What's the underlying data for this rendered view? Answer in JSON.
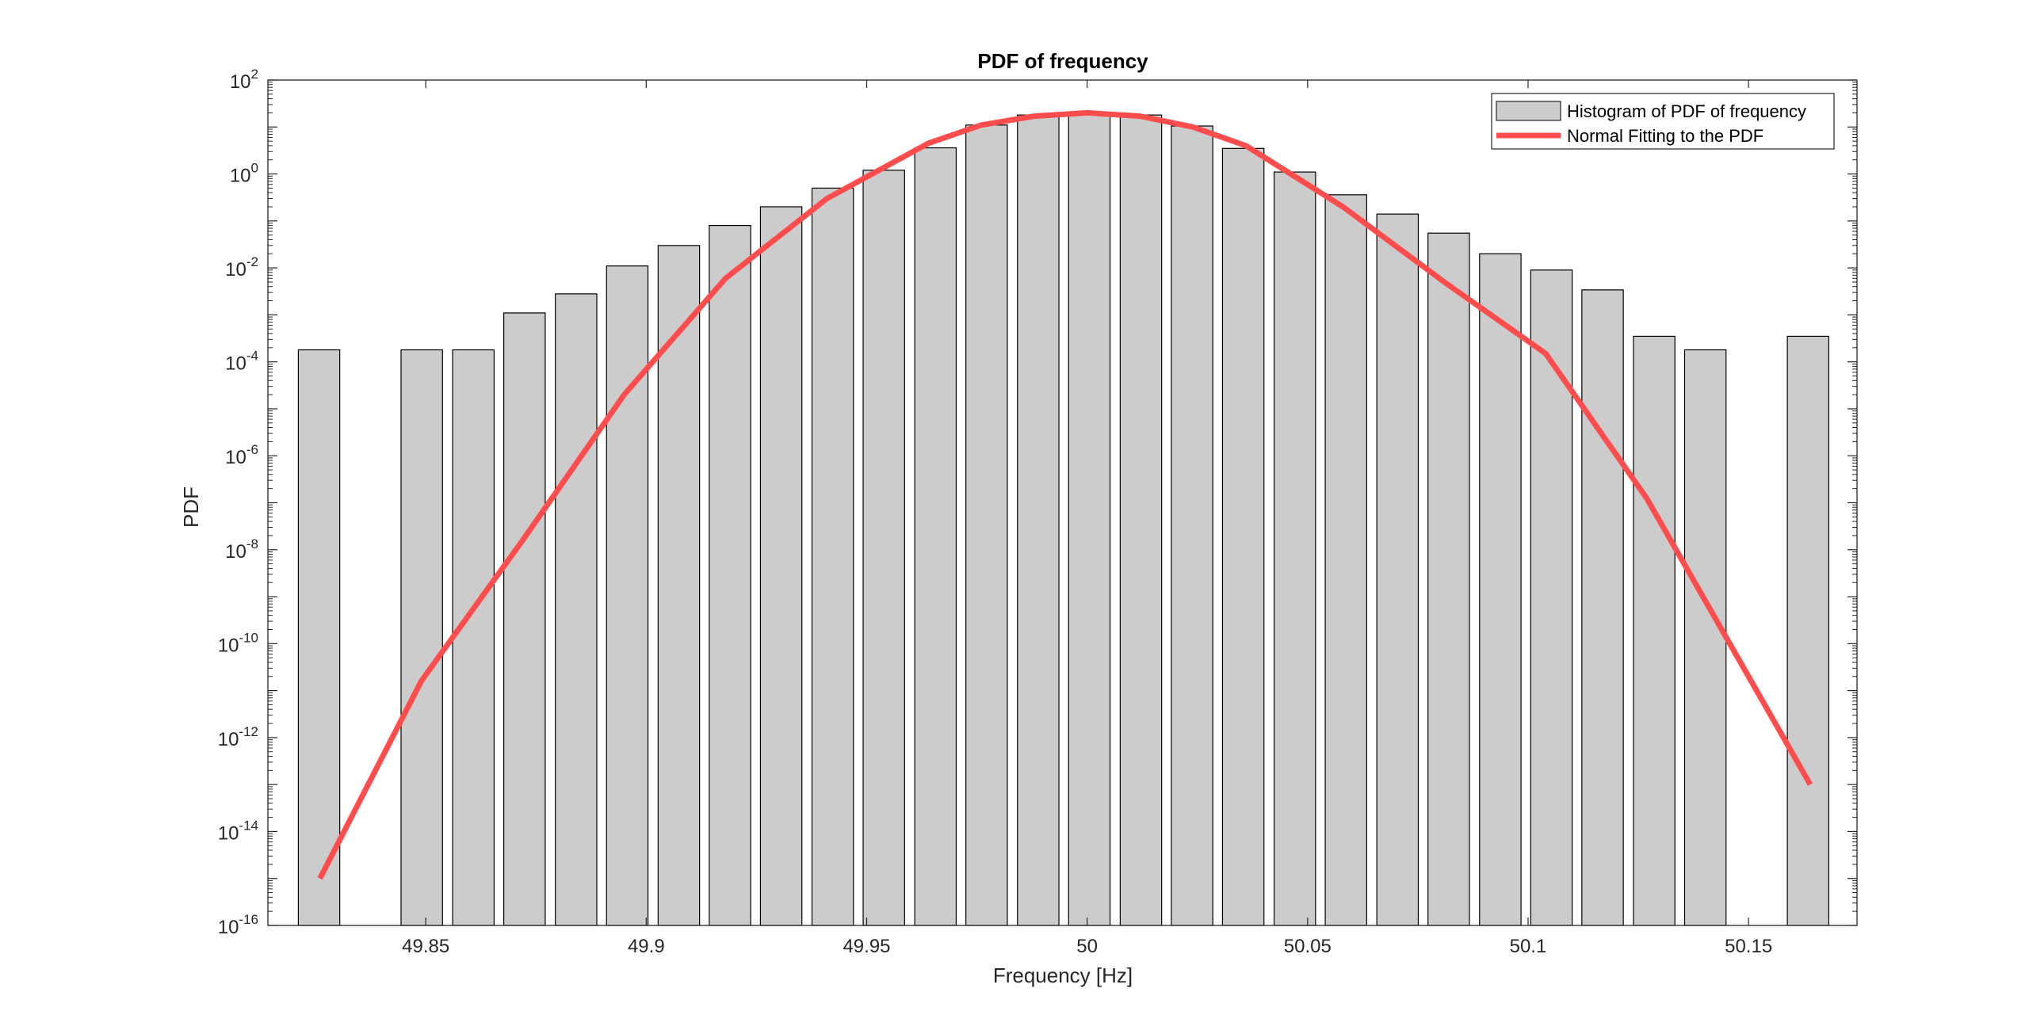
{
  "chart_data": {
    "type": "bar",
    "title": "PDF of frequency",
    "xlabel": "Frequency [Hz]",
    "ylabel": "PDF",
    "xlim": [
      49.8142,
      50.1746
    ],
    "ylim_log10": [
      -16,
      2
    ],
    "y_scale": "log",
    "grid": false,
    "legend_position": "top-right",
    "x_ticks": [
      {
        "value": 49.85,
        "label": "49.85"
      },
      {
        "value": 49.9,
        "label": "49.9"
      },
      {
        "value": 49.95,
        "label": "49.95"
      },
      {
        "value": 50,
        "label": "50"
      },
      {
        "value": 50.05,
        "label": "50.05"
      },
      {
        "value": 50.1,
        "label": "50.1"
      },
      {
        "value": 50.15,
        "label": "50.15"
      }
    ],
    "y_ticks": [
      {
        "exp": 2,
        "base": "10",
        "sup": "2"
      },
      {
        "exp": 0,
        "base": "10",
        "sup": "0"
      },
      {
        "exp": -2,
        "base": "10",
        "sup": "-2"
      },
      {
        "exp": -4,
        "base": "10",
        "sup": "-4"
      },
      {
        "exp": -6,
        "base": "10",
        "sup": "-6"
      },
      {
        "exp": -8,
        "base": "10",
        "sup": "-8"
      },
      {
        "exp": -10,
        "base": "10",
        "sup": "-10"
      },
      {
        "exp": -12,
        "base": "10",
        "sup": "-12"
      },
      {
        "exp": -14,
        "base": "10",
        "sup": "-14"
      },
      {
        "exp": -16,
        "base": "10",
        "sup": "-16"
      }
    ],
    "bar_width": 0.0094,
    "series": [
      {
        "name": "Histogram of PDF of frequency",
        "kind": "bar",
        "color": "#cccccc",
        "edge_color": "#000000",
        "points": [
          {
            "x": 49.8258,
            "y": 0.00018
          },
          {
            "x": 49.8491,
            "y": 0.00018
          },
          {
            "x": 49.8608,
            "y": 0.00018
          },
          {
            "x": 49.8724,
            "y": 0.0011
          },
          {
            "x": 49.8841,
            "y": 0.0028
          },
          {
            "x": 49.8957,
            "y": 0.011
          },
          {
            "x": 49.9074,
            "y": 0.03
          },
          {
            "x": 49.919,
            "y": 0.08
          },
          {
            "x": 49.9306,
            "y": 0.2
          },
          {
            "x": 49.9423,
            "y": 0.5
          },
          {
            "x": 49.9539,
            "y": 1.2
          },
          {
            "x": 49.9656,
            "y": 3.6
          },
          {
            "x": 49.9772,
            "y": 11
          },
          {
            "x": 49.9889,
            "y": 18
          },
          {
            "x": 50.0005,
            "y": 20
          },
          {
            "x": 50.0122,
            "y": 18
          },
          {
            "x": 50.0238,
            "y": 10.5
          },
          {
            "x": 50.0354,
            "y": 3.5
          },
          {
            "x": 50.0471,
            "y": 1.1
          },
          {
            "x": 50.0587,
            "y": 0.36
          },
          {
            "x": 50.0704,
            "y": 0.14
          },
          {
            "x": 50.082,
            "y": 0.055
          },
          {
            "x": 50.0937,
            "y": 0.02
          },
          {
            "x": 50.1053,
            "y": 0.009
          },
          {
            "x": 50.1169,
            "y": 0.0034
          },
          {
            "x": 50.1286,
            "y": 0.00035
          },
          {
            "x": 50.1402,
            "y": 0.00018
          },
          {
            "x": 50.1635,
            "y": 0.00035
          }
        ]
      },
      {
        "name": "Normal Fitting to the PDF",
        "kind": "line",
        "color": "#ff4d4d",
        "points": [
          {
            "x": 49.826,
            "y": 1e-15
          },
          {
            "x": 49.849,
            "y": 1.6e-11
          },
          {
            "x": 49.872,
            "y": 1.6e-08
          },
          {
            "x": 49.895,
            "y": 2e-05
          },
          {
            "x": 49.918,
            "y": 0.006
          },
          {
            "x": 49.941,
            "y": 0.3
          },
          {
            "x": 49.964,
            "y": 4.5
          },
          {
            "x": 49.976,
            "y": 11
          },
          {
            "x": 49.988,
            "y": 17
          },
          {
            "x": 50.0,
            "y": 20
          },
          {
            "x": 50.012,
            "y": 17
          },
          {
            "x": 50.024,
            "y": 10
          },
          {
            "x": 50.036,
            "y": 4
          },
          {
            "x": 50.058,
            "y": 0.2
          },
          {
            "x": 50.081,
            "y": 0.005
          },
          {
            "x": 50.104,
            "y": 0.00015
          },
          {
            "x": 50.127,
            "y": 1.2e-07
          },
          {
            "x": 50.15,
            "y": 2e-11
          },
          {
            "x": 50.164,
            "y": 1e-13
          }
        ]
      }
    ]
  }
}
